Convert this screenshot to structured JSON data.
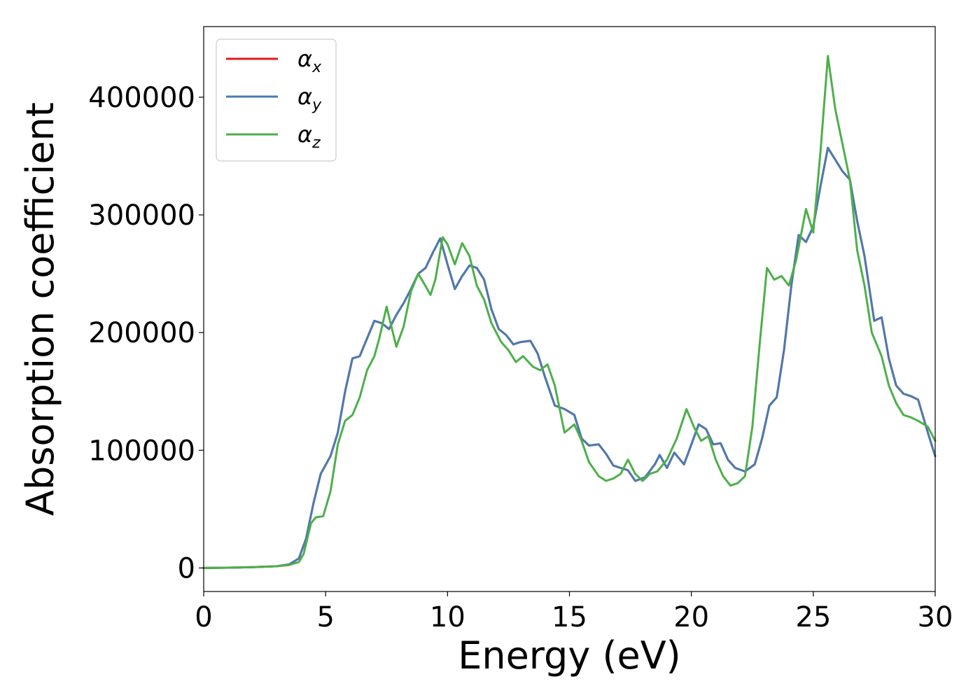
{
  "chart_data": {
    "type": "line",
    "title": "",
    "xlabel": "Energy (eV)",
    "ylabel": "Absorption coefficient",
    "xlim": [
      0,
      30
    ],
    "ylim": [
      -20000,
      460000
    ],
    "xticks": [
      0,
      5,
      10,
      15,
      20,
      25,
      30
    ],
    "yticks": [
      0,
      100000,
      200000,
      300000,
      400000
    ],
    "grid": false,
    "legend": "top-left",
    "series": [
      {
        "name": "α",
        "sub": "x",
        "color": "#e41a1c",
        "points": [
          [
            0,
            0
          ],
          [
            1,
            200
          ],
          [
            2,
            700
          ],
          [
            3,
            1500
          ],
          [
            3.5,
            3000
          ],
          [
            3.9,
            8000
          ],
          [
            4.2,
            25000
          ],
          [
            4.5,
            55000
          ],
          [
            4.8,
            80000
          ],
          [
            5.2,
            95000
          ],
          [
            5.5,
            115000
          ],
          [
            5.8,
            150000
          ],
          [
            6.1,
            178000
          ],
          [
            6.4,
            180000
          ],
          [
            6.7,
            195000
          ],
          [
            7.0,
            210000
          ],
          [
            7.3,
            208000
          ],
          [
            7.6,
            203000
          ],
          [
            7.9,
            215000
          ],
          [
            8.2,
            225000
          ],
          [
            8.5,
            237000
          ],
          [
            8.8,
            250000
          ],
          [
            9.1,
            255000
          ],
          [
            9.4,
            268000
          ],
          [
            9.7,
            280000
          ],
          [
            10.0,
            258000
          ],
          [
            10.3,
            237000
          ],
          [
            10.6,
            248000
          ],
          [
            10.9,
            257000
          ],
          [
            11.2,
            255000
          ],
          [
            11.5,
            245000
          ],
          [
            11.8,
            220000
          ],
          [
            12.1,
            203000
          ],
          [
            12.4,
            198000
          ],
          [
            12.7,
            190000
          ],
          [
            13.0,
            192000
          ],
          [
            13.4,
            193000
          ],
          [
            13.7,
            182000
          ],
          [
            14.0,
            162000
          ],
          [
            14.4,
            138000
          ],
          [
            14.8,
            135000
          ],
          [
            15.2,
            130000
          ],
          [
            15.5,
            110000
          ],
          [
            15.8,
            104000
          ],
          [
            16.2,
            105000
          ],
          [
            16.5,
            97000
          ],
          [
            16.8,
            87000
          ],
          [
            17.1,
            85000
          ],
          [
            17.4,
            83000
          ],
          [
            17.7,
            74000
          ],
          [
            18.1,
            77000
          ],
          [
            18.5,
            88000
          ],
          [
            18.7,
            96000
          ],
          [
            19.0,
            85000
          ],
          [
            19.3,
            98000
          ],
          [
            19.7,
            88000
          ],
          [
            20.0,
            105000
          ],
          [
            20.3,
            122000
          ],
          [
            20.6,
            118000
          ],
          [
            20.9,
            105000
          ],
          [
            21.2,
            106000
          ],
          [
            21.5,
            92000
          ],
          [
            21.8,
            85000
          ],
          [
            22.2,
            82000
          ],
          [
            22.6,
            88000
          ],
          [
            22.9,
            110000
          ],
          [
            23.2,
            138000
          ],
          [
            23.5,
            145000
          ],
          [
            23.8,
            185000
          ],
          [
            24.1,
            240000
          ],
          [
            24.4,
            283000
          ],
          [
            24.7,
            277000
          ],
          [
            25.0,
            290000
          ],
          [
            25.3,
            325000
          ],
          [
            25.6,
            357000
          ],
          [
            25.9,
            347000
          ],
          [
            26.2,
            337000
          ],
          [
            26.5,
            330000
          ],
          [
            26.8,
            295000
          ],
          [
            27.1,
            265000
          ],
          [
            27.5,
            210000
          ],
          [
            27.8,
            213000
          ],
          [
            28.1,
            178000
          ],
          [
            28.4,
            155000
          ],
          [
            28.7,
            148000
          ],
          [
            29.0,
            146000
          ],
          [
            29.3,
            143000
          ],
          [
            29.7,
            115000
          ],
          [
            30,
            95000
          ]
        ]
      },
      {
        "name": "α",
        "sub": "y",
        "color": "#4a7bb0",
        "points": [
          [
            0,
            0
          ],
          [
            1,
            200
          ],
          [
            2,
            700
          ],
          [
            3,
            1500
          ],
          [
            3.5,
            3000
          ],
          [
            3.9,
            8000
          ],
          [
            4.2,
            25000
          ],
          [
            4.5,
            55000
          ],
          [
            4.8,
            80000
          ],
          [
            5.2,
            95000
          ],
          [
            5.5,
            115000
          ],
          [
            5.8,
            150000
          ],
          [
            6.1,
            178000
          ],
          [
            6.4,
            180000
          ],
          [
            6.7,
            195000
          ],
          [
            7.0,
            210000
          ],
          [
            7.3,
            208000
          ],
          [
            7.6,
            203000
          ],
          [
            7.9,
            215000
          ],
          [
            8.2,
            225000
          ],
          [
            8.5,
            237000
          ],
          [
            8.8,
            250000
          ],
          [
            9.1,
            255000
          ],
          [
            9.4,
            268000
          ],
          [
            9.7,
            280000
          ],
          [
            10.0,
            258000
          ],
          [
            10.3,
            237000
          ],
          [
            10.6,
            248000
          ],
          [
            10.9,
            257000
          ],
          [
            11.2,
            255000
          ],
          [
            11.5,
            245000
          ],
          [
            11.8,
            220000
          ],
          [
            12.1,
            203000
          ],
          [
            12.4,
            198000
          ],
          [
            12.7,
            190000
          ],
          [
            13.0,
            192000
          ],
          [
            13.4,
            193000
          ],
          [
            13.7,
            182000
          ],
          [
            14.0,
            162000
          ],
          [
            14.4,
            138000
          ],
          [
            14.8,
            135000
          ],
          [
            15.2,
            130000
          ],
          [
            15.5,
            110000
          ],
          [
            15.8,
            104000
          ],
          [
            16.2,
            105000
          ],
          [
            16.5,
            97000
          ],
          [
            16.8,
            87000
          ],
          [
            17.1,
            85000
          ],
          [
            17.4,
            83000
          ],
          [
            17.7,
            74000
          ],
          [
            18.1,
            77000
          ],
          [
            18.5,
            88000
          ],
          [
            18.7,
            96000
          ],
          [
            19.0,
            85000
          ],
          [
            19.3,
            98000
          ],
          [
            19.7,
            88000
          ],
          [
            20.0,
            105000
          ],
          [
            20.3,
            122000
          ],
          [
            20.6,
            118000
          ],
          [
            20.9,
            105000
          ],
          [
            21.2,
            106000
          ],
          [
            21.5,
            92000
          ],
          [
            21.8,
            85000
          ],
          [
            22.2,
            82000
          ],
          [
            22.6,
            88000
          ],
          [
            22.9,
            110000
          ],
          [
            23.2,
            138000
          ],
          [
            23.5,
            145000
          ],
          [
            23.8,
            185000
          ],
          [
            24.1,
            240000
          ],
          [
            24.4,
            283000
          ],
          [
            24.7,
            277000
          ],
          [
            25.0,
            290000
          ],
          [
            25.3,
            325000
          ],
          [
            25.6,
            357000
          ],
          [
            25.9,
            347000
          ],
          [
            26.2,
            337000
          ],
          [
            26.5,
            330000
          ],
          [
            26.8,
            295000
          ],
          [
            27.1,
            265000
          ],
          [
            27.5,
            210000
          ],
          [
            27.8,
            213000
          ],
          [
            28.1,
            178000
          ],
          [
            28.4,
            155000
          ],
          [
            28.7,
            148000
          ],
          [
            29.0,
            146000
          ],
          [
            29.3,
            143000
          ],
          [
            29.7,
            115000
          ],
          [
            30,
            95000
          ]
        ]
      },
      {
        "name": "α",
        "sub": "z",
        "color": "#4daf4a",
        "points": [
          [
            0,
            0
          ],
          [
            1,
            200
          ],
          [
            2,
            700
          ],
          [
            3,
            1500
          ],
          [
            3.5,
            2500
          ],
          [
            3.9,
            5000
          ],
          [
            4.1,
            12000
          ],
          [
            4.4,
            38000
          ],
          [
            4.6,
            43000
          ],
          [
            4.9,
            44000
          ],
          [
            5.2,
            65000
          ],
          [
            5.5,
            105000
          ],
          [
            5.8,
            125000
          ],
          [
            6.1,
            130000
          ],
          [
            6.4,
            145000
          ],
          [
            6.7,
            168000
          ],
          [
            7.0,
            180000
          ],
          [
            7.2,
            195000
          ],
          [
            7.5,
            222000
          ],
          [
            7.7,
            205000
          ],
          [
            7.9,
            188000
          ],
          [
            8.2,
            205000
          ],
          [
            8.5,
            235000
          ],
          [
            8.8,
            250000
          ],
          [
            9.0,
            243000
          ],
          [
            9.3,
            232000
          ],
          [
            9.5,
            245000
          ],
          [
            9.8,
            281000
          ],
          [
            10.0,
            275000
          ],
          [
            10.3,
            258000
          ],
          [
            10.6,
            276000
          ],
          [
            10.9,
            265000
          ],
          [
            11.2,
            240000
          ],
          [
            11.5,
            228000
          ],
          [
            11.8,
            208000
          ],
          [
            12.2,
            192000
          ],
          [
            12.5,
            185000
          ],
          [
            12.8,
            175000
          ],
          [
            13.1,
            180000
          ],
          [
            13.5,
            171000
          ],
          [
            13.8,
            168000
          ],
          [
            14.1,
            173000
          ],
          [
            14.4,
            155000
          ],
          [
            14.8,
            115000
          ],
          [
            15.2,
            122000
          ],
          [
            15.5,
            108000
          ],
          [
            15.8,
            90000
          ],
          [
            16.2,
            78000
          ],
          [
            16.5,
            74000
          ],
          [
            16.8,
            76000
          ],
          [
            17.1,
            80000
          ],
          [
            17.4,
            92000
          ],
          [
            17.7,
            80000
          ],
          [
            18.0,
            74000
          ],
          [
            18.3,
            80000
          ],
          [
            18.6,
            82000
          ],
          [
            19.0,
            92000
          ],
          [
            19.4,
            110000
          ],
          [
            19.8,
            135000
          ],
          [
            20.1,
            120000
          ],
          [
            20.4,
            108000
          ],
          [
            20.7,
            112000
          ],
          [
            21.0,
            92000
          ],
          [
            21.3,
            78000
          ],
          [
            21.6,
            70000
          ],
          [
            21.9,
            72000
          ],
          [
            22.2,
            78000
          ],
          [
            22.5,
            120000
          ],
          [
            22.8,
            190000
          ],
          [
            23.1,
            255000
          ],
          [
            23.4,
            245000
          ],
          [
            23.7,
            248000
          ],
          [
            24.0,
            240000
          ],
          [
            24.3,
            262000
          ],
          [
            24.7,
            305000
          ],
          [
            25.0,
            285000
          ],
          [
            25.3,
            355000
          ],
          [
            25.6,
            435000
          ],
          [
            25.9,
            390000
          ],
          [
            26.2,
            360000
          ],
          [
            26.5,
            330000
          ],
          [
            26.8,
            270000
          ],
          [
            27.1,
            240000
          ],
          [
            27.4,
            200000
          ],
          [
            27.8,
            180000
          ],
          [
            28.1,
            155000
          ],
          [
            28.4,
            140000
          ],
          [
            28.7,
            130000
          ],
          [
            29.0,
            128000
          ],
          [
            29.3,
            125000
          ],
          [
            29.7,
            120000
          ],
          [
            30,
            108000
          ]
        ]
      }
    ]
  }
}
